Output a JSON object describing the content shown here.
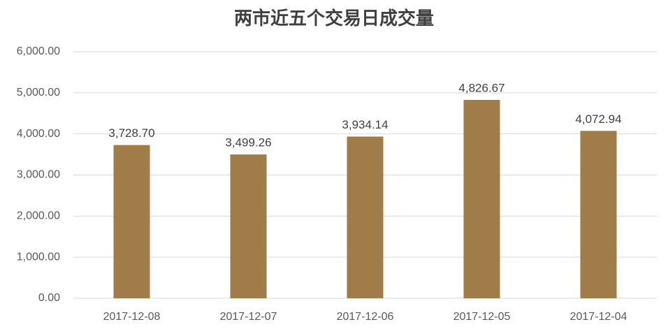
{
  "chart_data": {
    "type": "bar",
    "title": "两市近五个交易日成交量",
    "categories": [
      "2017-12-08",
      "2017-12-07",
      "2017-12-06",
      "2017-12-05",
      "2017-12-04"
    ],
    "values": [
      3728.7,
      3499.26,
      3934.14,
      4826.67,
      4072.94
    ],
    "value_labels": [
      "3,728.70",
      "3,499.26",
      "3,934.14",
      "4,826.67",
      "4,072.94"
    ],
    "color": "#a07c48",
    "ylim": [
      0,
      6000
    ],
    "yticks": [
      {
        "value": 0,
        "label": "0.00"
      },
      {
        "value": 1000,
        "label": "1,000.00"
      },
      {
        "value": 2000,
        "label": "2,000.00"
      },
      {
        "value": 3000,
        "label": "3,000.00"
      },
      {
        "value": 4000,
        "label": "4,000.00"
      },
      {
        "value": 5000,
        "label": "5,000.00"
      },
      {
        "value": 6000,
        "label": "6,000.00"
      }
    ],
    "grid": true
  }
}
